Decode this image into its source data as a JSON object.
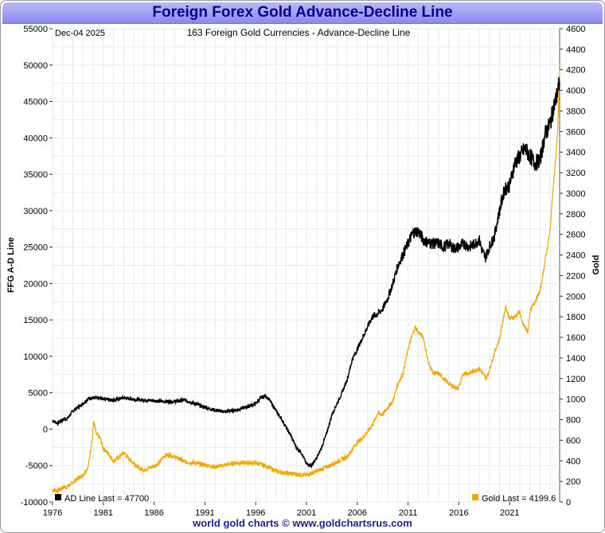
{
  "title": "Foreign Forex Gold Advance-Decline Line",
  "footer": "world gold charts © www.goldchartsrus.com",
  "colors": {
    "ad_line": "#000000",
    "gold": "#f2a800",
    "grid": "#e3ebf5",
    "title_text": "#00008b"
  },
  "chart_data": {
    "type": "line",
    "date_label": "Dec-04  2025",
    "subtitle": "163 Foreign Gold Currencies - Advance-Decline Line",
    "ylabel_left": "FFG A-D Line",
    "ylabel_right": "Gold",
    "xlim": [
      1976,
      2025.92
    ],
    "ylim_left": [
      -10000,
      55000
    ],
    "ylim_right": [
      0,
      4600
    ],
    "x_ticks": [
      1976,
      1981,
      1986,
      1991,
      1996,
      2001,
      2006,
      2011,
      2016,
      2021
    ],
    "left_ticks": [
      -10000,
      -5000,
      0,
      5000,
      10000,
      15000,
      20000,
      25000,
      30000,
      35000,
      40000,
      45000,
      50000,
      55000
    ],
    "right_ticks": [
      0,
      200,
      400,
      600,
      800,
      1000,
      1200,
      1400,
      1600,
      1800,
      2000,
      2200,
      2400,
      2600,
      2800,
      3000,
      3200,
      3400,
      3600,
      3800,
      4000,
      4200,
      4400,
      4600
    ],
    "series": [
      {
        "name": "AD Line",
        "axis": "left",
        "legend": "AD Line Last = 47700",
        "x": [
          1976.0,
          1976.5,
          1977.0,
          1977.5,
          1978.0,
          1978.5,
          1979.0,
          1979.5,
          1980.0,
          1980.5,
          1981.0,
          1982.0,
          1983.0,
          1984.0,
          1985.0,
          1986.0,
          1987.0,
          1988.0,
          1989.0,
          1990.0,
          1991.0,
          1992.0,
          1993.0,
          1994.0,
          1995.0,
          1996.0,
          1996.5,
          1997.0,
          1997.5,
          1998.0,
          1998.5,
          1999.0,
          1999.5,
          2000.0,
          2000.5,
          2001.0,
          2001.5,
          2002.0,
          2002.5,
          2003.0,
          2003.5,
          2004.0,
          2004.5,
          2005.0,
          2005.5,
          2006.0,
          2006.5,
          2007.0,
          2007.5,
          2008.0,
          2008.5,
          2009.0,
          2009.5,
          2010.0,
          2010.5,
          2011.0,
          2011.5,
          2012.0,
          2012.5,
          2013.0,
          2013.5,
          2014.0,
          2014.5,
          2015.0,
          2015.5,
          2016.0,
          2016.5,
          2017.0,
          2017.5,
          2018.0,
          2018.3,
          2018.6,
          2019.0,
          2019.5,
          2020.0,
          2020.5,
          2021.0,
          2021.5,
          2022.0,
          2022.5,
          2023.0,
          2023.5,
          2024.0,
          2024.5,
          2025.0,
          2025.3,
          2025.6,
          2025.92
        ],
        "values": [
          1200,
          800,
          1300,
          1500,
          2500,
          3000,
          3500,
          4200,
          4300,
          4200,
          4200,
          4000,
          4300,
          4100,
          4000,
          3900,
          3800,
          3800,
          4000,
          3500,
          3000,
          2600,
          2400,
          2600,
          3000,
          3500,
          4300,
          4600,
          3700,
          2500,
          1500,
          200,
          -1000,
          -2500,
          -3200,
          -4800,
          -5000,
          -4000,
          -2500,
          -500,
          2000,
          3500,
          5000,
          6800,
          9500,
          11000,
          12500,
          14000,
          15500,
          15800,
          16500,
          18000,
          20000,
          22500,
          24000,
          25500,
          27000,
          27200,
          26000,
          25600,
          25500,
          25500,
          25000,
          25500,
          24800,
          25000,
          25500,
          25000,
          25400,
          26000,
          24500,
          23500,
          25000,
          26500,
          30000,
          33000,
          33500,
          36500,
          37500,
          38500,
          37500,
          36500,
          37000,
          40500,
          42000,
          44000,
          45500,
          47700
        ]
      },
      {
        "name": "Gold",
        "axis": "right",
        "legend": "Gold  Last = 4199.6",
        "x": [
          1976.0,
          1976.5,
          1977.0,
          1977.5,
          1978.0,
          1978.5,
          1979.0,
          1979.5,
          1979.9,
          1980.05,
          1980.3,
          1980.7,
          1981.0,
          1981.5,
          1982.0,
          1982.5,
          1983.0,
          1983.5,
          1984.0,
          1984.5,
          1985.0,
          1985.5,
          1986.0,
          1986.5,
          1987.0,
          1987.5,
          1988.0,
          1988.5,
          1989.0,
          1990.0,
          1991.0,
          1992.0,
          1993.0,
          1994.0,
          1995.0,
          1996.0,
          1997.0,
          1998.0,
          1999.0,
          2000.0,
          2001.0,
          2002.0,
          2003.0,
          2004.0,
          2005.0,
          2006.0,
          2006.5,
          2007.0,
          2007.5,
          2008.0,
          2008.5,
          2009.0,
          2009.5,
          2010.0,
          2010.5,
          2011.0,
          2011.4,
          2011.7,
          2012.0,
          2012.5,
          2013.0,
          2013.5,
          2014.0,
          2015.0,
          2015.9,
          2016.5,
          2017.0,
          2018.0,
          2018.7,
          2019.0,
          2019.5,
          2020.0,
          2020.6,
          2021.0,
          2021.5,
          2022.0,
          2022.2,
          2022.8,
          2023.0,
          2023.5,
          2024.0,
          2024.5,
          2025.0,
          2025.2,
          2025.5,
          2025.75,
          2025.92
        ],
        "values": [
          120,
          110,
          140,
          150,
          190,
          230,
          260,
          340,
          600,
          780,
          660,
          620,
          520,
          470,
          400,
          430,
          480,
          420,
          380,
          330,
          310,
          330,
          350,
          380,
          450,
          460,
          440,
          420,
          390,
          380,
          360,
          340,
          360,
          380,
          380,
          380,
          350,
          300,
          280,
          270,
          260,
          300,
          340,
          390,
          440,
          580,
          620,
          680,
          750,
          860,
          850,
          920,
          980,
          1150,
          1250,
          1480,
          1620,
          1700,
          1650,
          1600,
          1350,
          1250,
          1250,
          1150,
          1100,
          1250,
          1250,
          1300,
          1200,
          1280,
          1450,
          1580,
          1900,
          1780,
          1800,
          1850,
          1750,
          1650,
          1850,
          1950,
          2050,
          2350,
          2650,
          2950,
          3300,
          3650,
          4199.6
        ]
      }
    ]
  }
}
